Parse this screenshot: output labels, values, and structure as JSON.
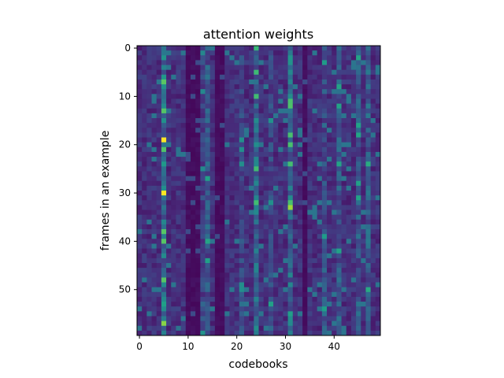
{
  "chart_data": {
    "type": "heatmap",
    "title": "attention weights",
    "xlabel": "codebooks",
    "ylabel": "frames in an example",
    "n_cols": 50,
    "n_rows": 60,
    "x_ticks": [
      0,
      10,
      20,
      30,
      40
    ],
    "y_ticks": [
      0,
      10,
      20,
      30,
      40,
      50
    ],
    "colormap": "viridis",
    "value_range": [
      0,
      1
    ],
    "bright_cells": [
      {
        "col": 5,
        "row": 19,
        "value": 1.0
      },
      {
        "col": 5,
        "row": 30,
        "value": 1.0
      },
      {
        "col": 31,
        "row": 33,
        "value": 0.85
      }
    ],
    "active_columns": [
      {
        "col": 5,
        "level": 0.42
      },
      {
        "col": 13,
        "level": 0.22
      },
      {
        "col": 14,
        "level": 0.3
      },
      {
        "col": 21,
        "level": 0.24
      },
      {
        "col": 24,
        "level": 0.38
      },
      {
        "col": 27,
        "level": 0.24
      },
      {
        "col": 31,
        "level": 0.4
      },
      {
        "col": 38,
        "level": 0.28
      },
      {
        "col": 41,
        "level": 0.3
      },
      {
        "col": 45,
        "level": 0.3
      },
      {
        "col": 47,
        "level": 0.32
      }
    ],
    "dark_columns": [
      10,
      11,
      12,
      16,
      17,
      34
    ],
    "base_level": 0.16
  },
  "colors": {
    "cmap_stops": [
      "#440154",
      "#482878",
      "#3e4989",
      "#31688e",
      "#26828e",
      "#1f9e89",
      "#35b779",
      "#6ece58",
      "#b5de2b",
      "#fde725"
    ],
    "axis": "#000000"
  }
}
